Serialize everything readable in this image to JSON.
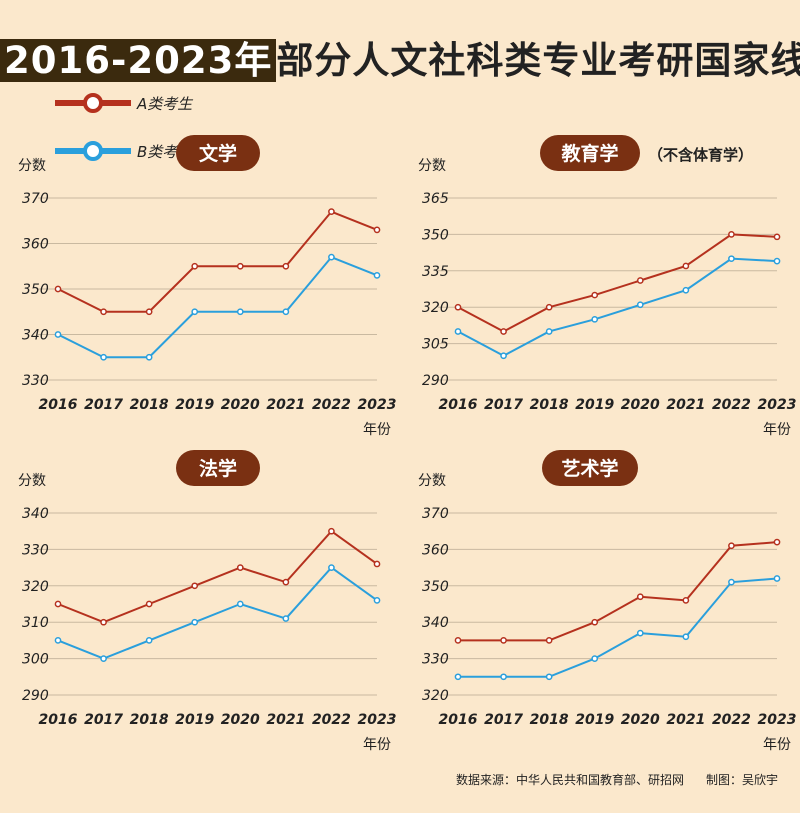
{
  "header": {
    "title_year": "2016-2023年",
    "title_rest": "部分人文社科类专业考研国家线"
  },
  "legend": {
    "a_label": "A类考生",
    "b_label": "B类考生"
  },
  "colors": {
    "a": "#b5311e",
    "b": "#2a9fdc",
    "badge": "#7a3012",
    "grid": "#c9b9a0"
  },
  "footer": {
    "source": "数据来源：中华人民共和国教育部、研招网",
    "author": "制图：吴欣宇"
  },
  "chart_data": [
    {
      "type": "line",
      "title": "文学",
      "note": "",
      "ylabel": "分数",
      "xlabel": "年份",
      "x": [
        "2016",
        "2017",
        "2018",
        "2019",
        "2020",
        "2021",
        "2022",
        "2023"
      ],
      "yticks": [
        330,
        340,
        350,
        360,
        370
      ],
      "ylim": [
        330,
        370
      ],
      "series": [
        {
          "name": "A类考生",
          "values": [
            350,
            345,
            345,
            355,
            355,
            355,
            367,
            363
          ]
        },
        {
          "name": "B类考生",
          "values": [
            340,
            335,
            335,
            345,
            345,
            345,
            357,
            353
          ]
        }
      ]
    },
    {
      "type": "line",
      "title": "教育学",
      "note": "（不含体育学）",
      "ylabel": "分数",
      "xlabel": "年份",
      "x": [
        "2016",
        "2017",
        "2018",
        "2019",
        "2020",
        "2021",
        "2022",
        "2023"
      ],
      "yticks": [
        290,
        305,
        320,
        335,
        350,
        365
      ],
      "ylim": [
        290,
        365
      ],
      "series": [
        {
          "name": "A类考生",
          "values": [
            320,
            310,
            320,
            325,
            331,
            337,
            350,
            349
          ]
        },
        {
          "name": "B类考生",
          "values": [
            310,
            300,
            310,
            315,
            321,
            327,
            340,
            339
          ]
        }
      ]
    },
    {
      "type": "line",
      "title": "法学",
      "note": "",
      "ylabel": "分数",
      "xlabel": "年份",
      "x": [
        "2016",
        "2017",
        "2018",
        "2019",
        "2020",
        "2021",
        "2022",
        "2023"
      ],
      "yticks": [
        290,
        300,
        310,
        320,
        330,
        340
      ],
      "ylim": [
        290,
        340
      ],
      "series": [
        {
          "name": "A类考生",
          "values": [
            315,
            310,
            315,
            320,
            325,
            321,
            335,
            326
          ]
        },
        {
          "name": "B类考生",
          "values": [
            305,
            300,
            305,
            310,
            315,
            311,
            325,
            316
          ]
        }
      ]
    },
    {
      "type": "line",
      "title": "艺术学",
      "note": "",
      "ylabel": "分数",
      "xlabel": "年份",
      "x": [
        "2016",
        "2017",
        "2018",
        "2019",
        "2020",
        "2021",
        "2022",
        "2023"
      ],
      "yticks": [
        320,
        330,
        340,
        350,
        360,
        370
      ],
      "ylim": [
        320,
        370
      ],
      "series": [
        {
          "name": "A类考生",
          "values": [
            335,
            335,
            335,
            340,
            347,
            346,
            361,
            362
          ]
        },
        {
          "name": "B类考生",
          "values": [
            325,
            325,
            325,
            330,
            337,
            336,
            351,
            352
          ]
        }
      ]
    }
  ]
}
